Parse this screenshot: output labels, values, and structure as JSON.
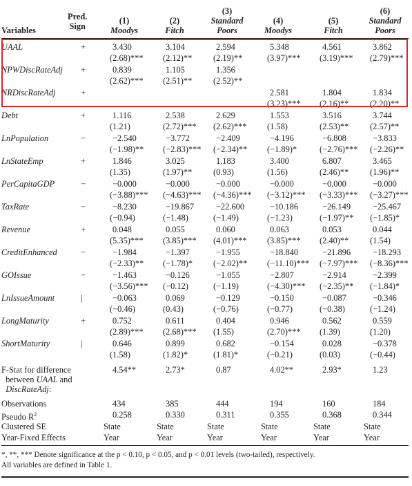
{
  "header": {
    "variables": "Variables",
    "pred_sign": [
      "Pred.",
      "Sign"
    ],
    "columns": [
      {
        "num": "(1)",
        "name": [
          "Moodys"
        ]
      },
      {
        "num": "(2)",
        "name": [
          "Fitch"
        ]
      },
      {
        "num": "(3)",
        "name": [
          "Standard",
          "Poors"
        ]
      },
      {
        "num": "(4)",
        "name": [
          "Moodys"
        ]
      },
      {
        "num": "(5)",
        "name": [
          "Fitch"
        ]
      },
      {
        "num": "(6)",
        "name": [
          "Standard",
          "Poors"
        ]
      }
    ]
  },
  "rows": [
    {
      "name": "UAAL",
      "sign": "+",
      "c": [
        "3.430",
        "3.104",
        "2.594",
        "5.348",
        "4.561",
        "3.862"
      ],
      "t": [
        "(2.68)***",
        "(2.12)**",
        "(2.19)**",
        "(3.97)***",
        "(3.19)***",
        "(2.79)***"
      ]
    },
    {
      "name": "NPWDiscRateAdj",
      "sign": "+",
      "c": [
        "0.839",
        "1.105",
        "1.356",
        "",
        "",
        ""
      ],
      "t": [
        "(2.62)***",
        "(2.51)**",
        "(2.52)**",
        "",
        "",
        ""
      ]
    },
    {
      "name": "NRDiscRateAdj",
      "sign": "+",
      "c": [
        "",
        "",
        "",
        "2.581",
        "1.804",
        "1.834"
      ],
      "t": [
        "",
        "",
        "",
        "(3.23)***",
        "(2.16)**",
        "(2.20)**"
      ]
    },
    {
      "name": "Debt",
      "sign": "+",
      "c": [
        "1.116",
        "2.538",
        "2.629",
        "1.553",
        "3.516",
        "3.744"
      ],
      "t": [
        "(1.21)",
        "(2.72)***",
        "(2.62)***",
        "(1.58)",
        "(2.53)**",
        "(2.57)**"
      ]
    },
    {
      "name": "LnPopulation",
      "sign": "−",
      "c": [
        "−2.540",
        "−3.772",
        "−2.409",
        "−4.196",
        "−6.808",
        "−3.833"
      ],
      "t": [
        "(−1.98)**",
        "(−2.83)***",
        "(−2.34)**",
        "(−1.89)*",
        "(−2.76)***",
        "(−2.26)**"
      ]
    },
    {
      "name": "LnStateEmp",
      "sign": "+",
      "c": [
        "1.846",
        "3.025",
        "1.183",
        "3.400",
        "6.807",
        "3.465"
      ],
      "t": [
        "(1.35)",
        "(1.97)**",
        "(0.93)",
        "(1.56)",
        "(2.46)**",
        "(1.96)**"
      ]
    },
    {
      "name": "PerCapitaGDP",
      "sign": "−",
      "c": [
        "−0.000",
        "−0.000",
        "−0.000",
        "−0.000",
        "−0.000",
        "−0.000"
      ],
      "t": [
        "(−3.88)***",
        "(−4.63)***",
        "(−4.36)***",
        "(−3.12)***",
        "(−3.33)***",
        "(−3.27)***"
      ]
    },
    {
      "name": "TaxRate",
      "sign": "−",
      "c": [
        "−8.230",
        "−19.867",
        "−22.600",
        "−10.186",
        "−26.149",
        "−25.467"
      ],
      "t": [
        "(−0.94)",
        "(−1.48)",
        "(−1.49)",
        "(−1.23)",
        "(−1.97)**",
        "(−1.85)*"
      ]
    },
    {
      "name": "Revenue",
      "sign": "+",
      "c": [
        "0.048",
        "0.055",
        "0.060",
        "0.063",
        "0.053",
        "0.044"
      ],
      "t": [
        "(5.35)***",
        "(3.85)***",
        "(4.01)***",
        "(3.85)***",
        "(2.40)**",
        "(1.54)"
      ]
    },
    {
      "name": "CreditEnhanced",
      "sign": "−",
      "c": [
        "−1.984",
        "−1.397",
        "−1.955",
        "−18.840",
        "−21.896",
        "−18.293"
      ],
      "t": [
        "(−2.33)**",
        "(−1.78)*",
        "(−2.02)**",
        "(−11.10)***",
        "(−7.97)***",
        "(−8.36)***"
      ]
    },
    {
      "name": "GOIssue",
      "sign": "−",
      "c": [
        "−1.463",
        "−0.126",
        "−1.055",
        "−2.807",
        "−2.914",
        "−2.399"
      ],
      "t": [
        "(−3.56)***",
        "(−0.12)",
        "(−1.19)",
        "(−4.30)***",
        "(−2.35)**",
        "(−1.84)*"
      ]
    },
    {
      "name": "LnIssueAmount",
      "sign": "|",
      "c": [
        "−0.063",
        "0.069",
        "−0.129",
        "−0.150",
        "−0.087",
        "−0.346"
      ],
      "t": [
        "(−0.46)",
        "(0.43)",
        "(−0.76)",
        "(−0.77)",
        "(−0.38)",
        "(−1.24)"
      ]
    },
    {
      "name": "LongMaturity",
      "sign": "+",
      "c": [
        "0.752",
        "0.611",
        "0.404",
        "0.946",
        "0.562",
        "0.559"
      ],
      "t": [
        "(2.89)***",
        "(2.68)***",
        "(1.55)",
        "(2.70)***",
        "(1.39)",
        "(1.20)"
      ]
    },
    {
      "name": "ShortMaturity",
      "sign": "|",
      "c": [
        "0.646",
        "0.899",
        "0.682",
        "−0.154",
        "0.028",
        "−0.378"
      ],
      "t": [
        "(1.58)",
        "(1.82)*",
        "(1.81)*",
        "(−0.21)",
        "(0.03)",
        "(−0.44)"
      ]
    }
  ],
  "fstat": {
    "label": [
      "F-Stat for difference",
      "between ",
      "UAAL",
      " and",
      "DiscRateAdj",
      ":"
    ],
    "values": [
      "4.54**",
      "2.73*",
      "0.87",
      "4.02**",
      "2.93*",
      "1.23"
    ]
  },
  "stats": [
    {
      "label": "Observations",
      "values": [
        "434",
        "385",
        "444",
        "194",
        "160",
        "184"
      ],
      "offset": false
    },
    {
      "label": "Pseudo R²",
      "values": [
        "0.258",
        "0.330",
        "0.311",
        "0.355",
        "0.368",
        "0.344"
      ],
      "offset": true
    },
    {
      "label": "Clustered SE",
      "values": [
        "State",
        "State",
        "State",
        "State",
        "State",
        "State"
      ],
      "offset": false
    },
    {
      "label": "Year-Fixed Effects",
      "values": [
        "Year",
        "Year",
        "Year",
        "Year",
        "Year",
        "Year"
      ],
      "offset": false
    }
  ],
  "footnote": [
    "*, **, *** Denote significance at the p < 0.10, p < 0.05, and p < 0.01 levels (two-tailed), respectively.",
    "All variables are defined in Table 1."
  ]
}
